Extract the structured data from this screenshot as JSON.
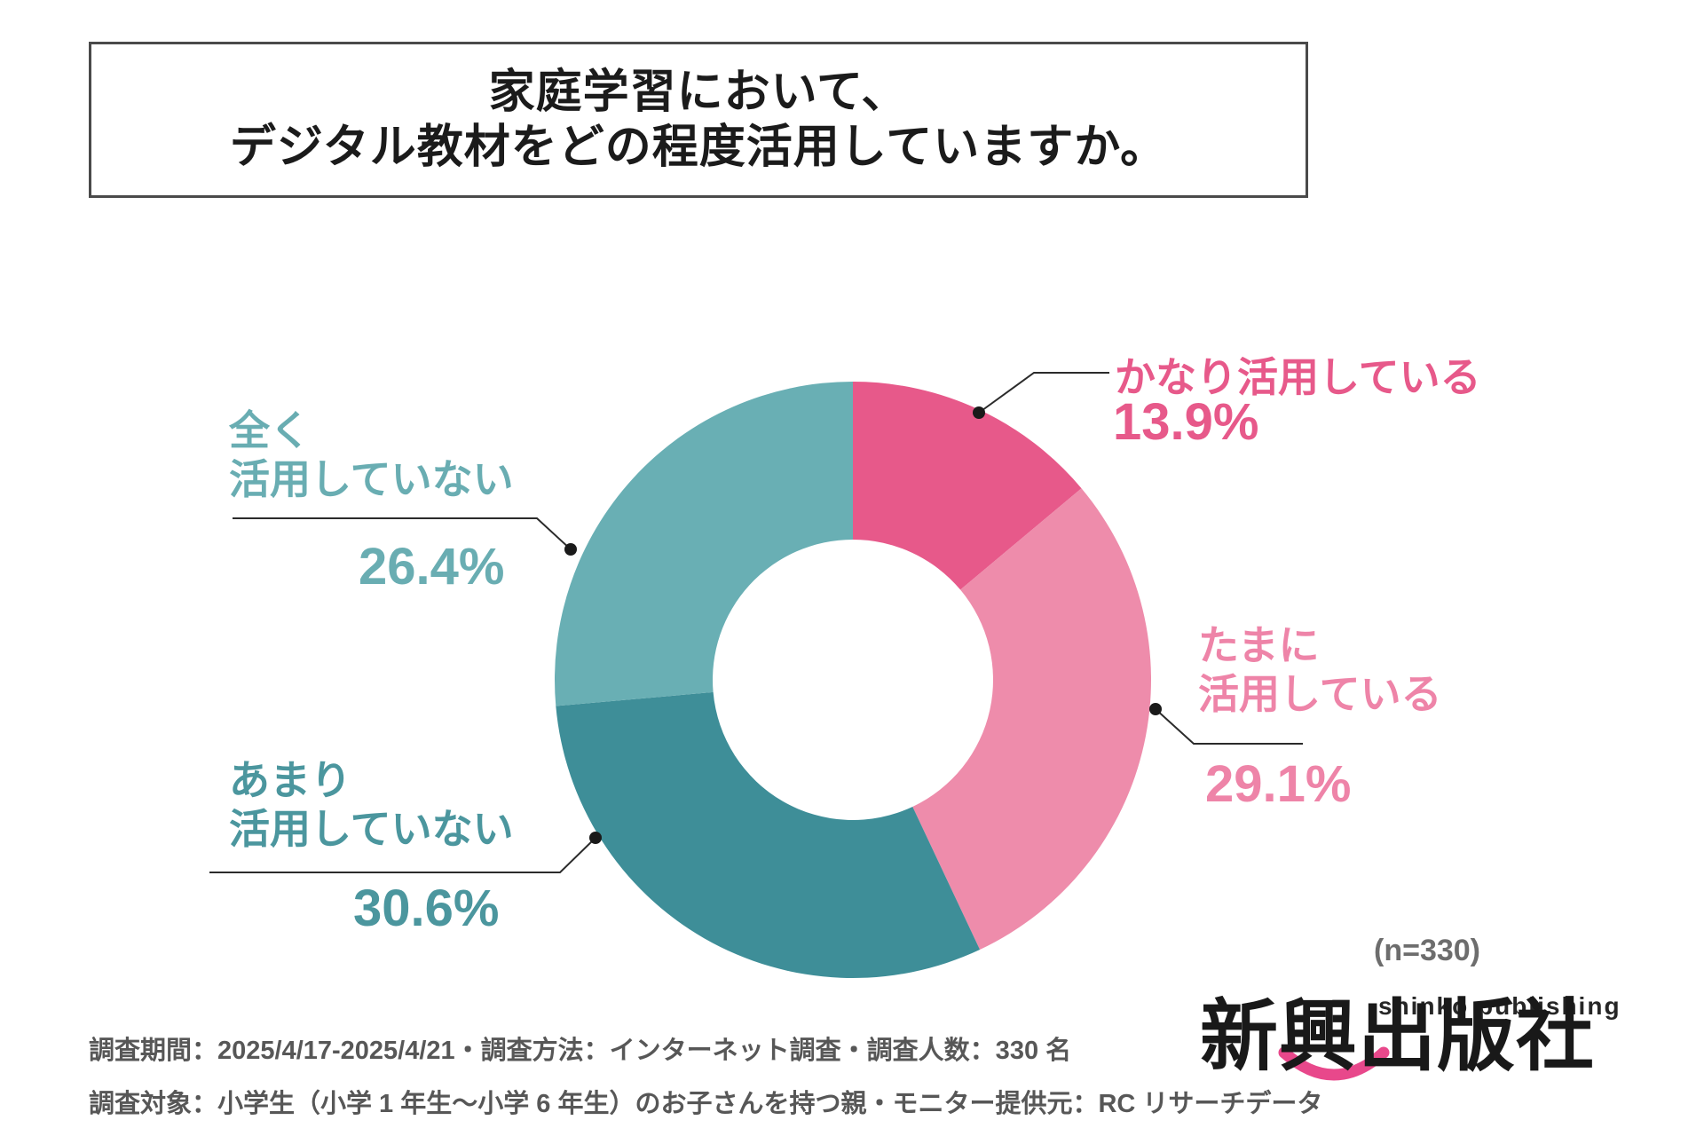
{
  "title": {
    "line1": "家庭学習において、",
    "line2": "デジタル教材をどの程度活用していますか。"
  },
  "chart_data": {
    "type": "pie",
    "donut": true,
    "title": "家庭学習において、デジタル教材をどの程度活用していますか。",
    "categories": [
      "かなり活用している",
      "たまに活用している",
      "あまり活用していない",
      "全く活用していない"
    ],
    "values": [
      13.9,
      29.1,
      30.6,
      26.4
    ],
    "unit": "%",
    "n_label": "(n=330)",
    "start_angle_deg": 0,
    "direction": "clockwise",
    "legend_position": "callout-labels",
    "segments": [
      {
        "name": "かなり活用している",
        "value_pct": 13.9,
        "pct_label": "13.9%",
        "color": "#e7598a",
        "label_color": "#e7598a",
        "label_lines": [
          "かなり活用している"
        ]
      },
      {
        "name": "たまに活用している",
        "value_pct": 29.1,
        "pct_label": "29.1%",
        "color": "#ee8cab",
        "label_color": "#ee84a8",
        "label_lines": [
          "たまに",
          "活用している"
        ]
      },
      {
        "name": "あまり活用していない",
        "value_pct": 30.6,
        "pct_label": "30.6%",
        "color": "#3e8e98",
        "label_color": "#4b969e",
        "label_lines": [
          "あまり",
          "活用していない"
        ]
      },
      {
        "name": "全く活用していない",
        "value_pct": 26.4,
        "pct_label": "26.4%",
        "color": "#69afb4",
        "label_color": "#69adb2",
        "label_lines": [
          "全く",
          "活用していない"
        ]
      }
    ]
  },
  "footer": {
    "line1": "調査期間：2025/4/17-2025/4/21・調査方法：インターネット調査・調査人数：330 名",
    "line2": "調査対象：小学生（小学 1 年生～小学 6 年生）のお子さんを持つ親・モニター提供元：RC リサーチデータ"
  },
  "logo": {
    "en": "shinko publishing",
    "jp": "新興出版社"
  }
}
